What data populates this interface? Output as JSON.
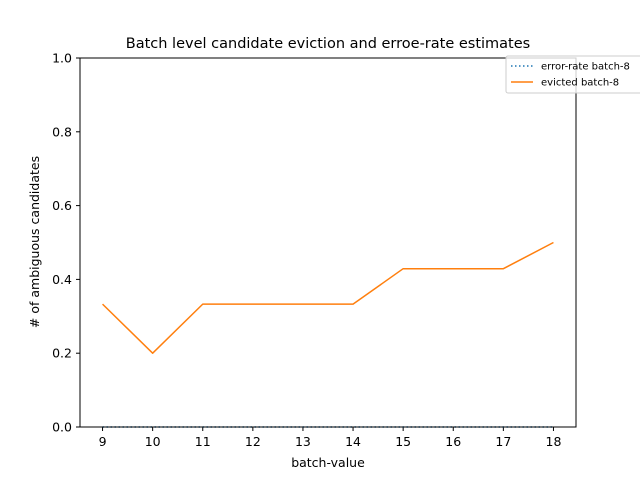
{
  "chart_data": {
    "type": "line",
    "title": "Batch level candidate eviction and erroe-rate estimates",
    "xlabel": "batch-value",
    "ylabel": "# of ambiguous candidates",
    "x": [
      9,
      10,
      11,
      12,
      13,
      14,
      15,
      16,
      17,
      18
    ],
    "xlim": [
      8.55,
      18.45
    ],
    "ylim": [
      0,
      1.0
    ],
    "xticks": [
      "9",
      "10",
      "11",
      "12",
      "13",
      "14",
      "15",
      "16",
      "17",
      "18"
    ],
    "yticks": [
      "0.0",
      "0.2",
      "0.4",
      "0.6",
      "0.8",
      "1.0"
    ],
    "grid": false,
    "legend_position": "top-right",
    "series": [
      {
        "name": "error-rate batch-8",
        "style": "dotted",
        "color": "#1f77b4",
        "values": [
          0,
          0,
          0,
          0,
          0,
          0,
          0,
          0,
          0,
          0
        ]
      },
      {
        "name": "evicted batch-8",
        "style": "solid",
        "color": "#ff7f0e",
        "values": [
          0.333,
          0.2,
          0.333,
          0.333,
          0.333,
          0.333,
          0.429,
          0.429,
          0.429,
          0.5
        ]
      }
    ]
  }
}
